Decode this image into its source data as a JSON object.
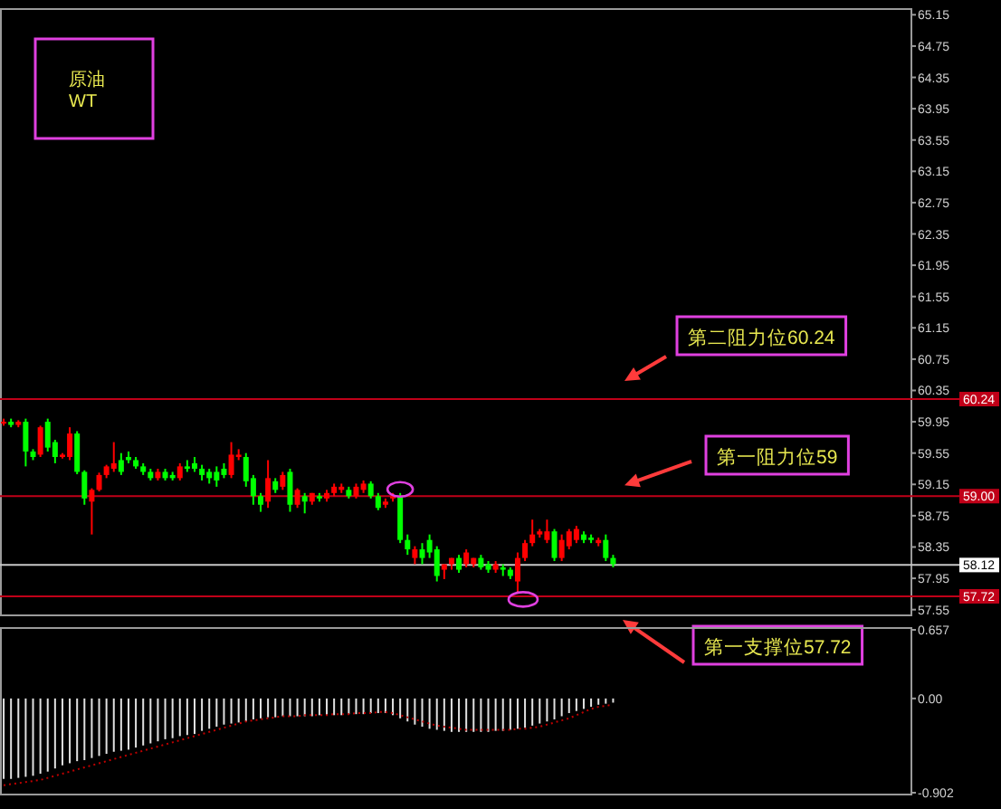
{
  "chart_data": [
    {
      "type": "candlestick",
      "title": "原油",
      "subtitle": "WT",
      "categories": [
        null,
        null,
        null,
        null,
        null,
        null,
        null,
        null,
        null,
        null,
        null,
        null,
        null,
        null,
        null,
        null,
        null,
        null,
        null,
        null,
        null,
        null,
        null,
        null,
        null,
        null,
        null,
        null,
        null,
        null,
        null,
        null,
        null,
        null,
        null,
        null,
        null,
        null,
        null,
        null,
        null,
        null,
        null,
        null,
        null,
        null,
        null,
        null,
        null,
        null,
        null,
        null,
        null,
        null,
        null,
        null,
        null,
        null,
        null,
        null,
        null,
        null,
        null,
        null,
        null,
        null,
        null,
        null,
        null,
        null,
        null,
        null,
        null,
        null,
        null,
        null,
        null,
        null,
        null,
        null,
        null,
        null,
        null,
        null,
        null,
        null,
        null,
        null,
        null,
        null,
        null,
        null,
        null,
        null,
        null,
        null,
        null,
        null,
        null,
        null,
        null,
        null,
        null,
        null,
        null,
        null,
        null,
        null,
        null,
        null,
        null,
        null,
        null,
        null,
        null,
        null,
        null,
        null,
        null,
        null,
        null,
        null,
        null,
        null
      ],
      "ohlc": [
        [
          59.93,
          59.99,
          59.9,
          59.95
        ],
        [
          59.95,
          59.99,
          59.88,
          59.91
        ],
        [
          59.91,
          59.97,
          59.88,
          59.95
        ],
        [
          59.95,
          59.99,
          59.38,
          59.57
        ],
        [
          59.57,
          59.6,
          59.46,
          59.5
        ],
        [
          59.53,
          59.9,
          59.5,
          59.88
        ],
        [
          59.95,
          59.99,
          59.57,
          59.62
        ],
        [
          59.69,
          59.72,
          59.42,
          59.5
        ],
        [
          59.5,
          59.55,
          59.48,
          59.53
        ],
        [
          59.5,
          59.88,
          59.46,
          59.8
        ],
        [
          59.8,
          59.83,
          59.28,
          59.31
        ],
        [
          59.31,
          59.33,
          58.89,
          58.97
        ],
        [
          58.93,
          59.1,
          58.51,
          59.08
        ],
        [
          59.08,
          59.3,
          59.06,
          59.27
        ],
        [
          59.27,
          59.4,
          59.23,
          59.38
        ],
        [
          59.35,
          59.69,
          59.31,
          59.42
        ],
        [
          59.46,
          59.55,
          59.27,
          59.31
        ],
        [
          59.5,
          59.57,
          59.42,
          59.46
        ],
        [
          59.46,
          59.5,
          59.35,
          59.38
        ],
        [
          59.38,
          59.42,
          59.27,
          59.31
        ],
        [
          59.31,
          59.35,
          59.2,
          59.23
        ],
        [
          59.23,
          59.35,
          59.2,
          59.31
        ],
        [
          59.31,
          59.35,
          59.2,
          59.23
        ],
        [
          59.27,
          59.31,
          59.2,
          59.23
        ],
        [
          59.23,
          59.42,
          59.2,
          59.38
        ],
        [
          59.38,
          59.46,
          59.31,
          59.35
        ],
        [
          59.42,
          59.5,
          59.31,
          59.35
        ],
        [
          59.35,
          59.4,
          59.2,
          59.27
        ],
        [
          59.31,
          59.35,
          59.16,
          59.23
        ],
        [
          59.31,
          59.38,
          59.12,
          59.2
        ],
        [
          59.35,
          59.42,
          59.23,
          59.27
        ],
        [
          59.27,
          59.69,
          59.23,
          59.53
        ],
        [
          59.5,
          59.6,
          59.46,
          59.53
        ],
        [
          59.5,
          59.55,
          59.12,
          59.19
        ],
        [
          59.23,
          59.27,
          58.89,
          59.0
        ],
        [
          59.0,
          59.04,
          58.8,
          58.89
        ],
        [
          58.93,
          59.46,
          58.85,
          59.23
        ],
        [
          59.19,
          59.23,
          59.04,
          59.08
        ],
        [
          59.12,
          59.31,
          59.08,
          59.27
        ],
        [
          59.31,
          59.35,
          58.8,
          58.89
        ],
        [
          58.89,
          59.1,
          58.85,
          59.08
        ],
        [
          59.0,
          59.04,
          58.78,
          58.93
        ],
        [
          58.93,
          59.04,
          58.89,
          59.04
        ],
        [
          59.0,
          59.04,
          58.93,
          58.97
        ],
        [
          58.97,
          59.08,
          58.93,
          59.04
        ],
        [
          59.04,
          59.16,
          59.0,
          59.12
        ],
        [
          59.08,
          59.16,
          59.04,
          59.12
        ],
        [
          59.08,
          59.12,
          58.97,
          59.0
        ],
        [
          59.0,
          59.16,
          58.97,
          59.12
        ],
        [
          59.08,
          59.2,
          59.04,
          59.16
        ],
        [
          59.16,
          59.19,
          58.97,
          59.0
        ],
        [
          59.0,
          59.04,
          58.82,
          58.85
        ],
        [
          58.89,
          58.97,
          58.85,
          58.93
        ],
        [
          58.97,
          59.04,
          58.93,
          59.0
        ],
        [
          59.0,
          59.04,
          58.4,
          58.44
        ],
        [
          58.44,
          58.51,
          58.25,
          58.32
        ],
        [
          58.21,
          58.36,
          58.13,
          58.32
        ],
        [
          58.32,
          58.4,
          58.13,
          58.21
        ],
        [
          58.44,
          58.51,
          58.21,
          58.28
        ],
        [
          58.32,
          58.36,
          57.91,
          57.98
        ],
        [
          58.06,
          58.13,
          57.94,
          58.13
        ],
        [
          58.13,
          58.21,
          58.06,
          58.21
        ],
        [
          58.21,
          58.25,
          58.02,
          58.06
        ],
        [
          58.13,
          58.32,
          58.09,
          58.28
        ],
        [
          58.13,
          58.21,
          58.09,
          58.21
        ],
        [
          58.21,
          58.25,
          58.06,
          58.09
        ],
        [
          58.13,
          58.17,
          58.02,
          58.06
        ],
        [
          58.06,
          58.17,
          58.02,
          58.13
        ],
        [
          58.09,
          58.13,
          57.98,
          58.06
        ],
        [
          58.06,
          58.09,
          57.94,
          57.98
        ],
        [
          57.91,
          58.28,
          57.75,
          58.21
        ],
        [
          58.21,
          58.44,
          58.17,
          58.4
        ],
        [
          58.4,
          58.7,
          58.36,
          58.51
        ],
        [
          58.51,
          58.58,
          58.47,
          58.55
        ],
        [
          58.44,
          58.7,
          58.4,
          58.55
        ],
        [
          58.55,
          58.58,
          58.17,
          58.21
        ],
        [
          58.21,
          58.51,
          58.17,
          58.44
        ],
        [
          58.36,
          58.58,
          58.32,
          58.55
        ],
        [
          58.44,
          58.62,
          58.4,
          58.58
        ],
        [
          58.51,
          58.55,
          58.4,
          58.44
        ],
        [
          58.47,
          58.51,
          58.4,
          58.44
        ],
        [
          58.4,
          58.47,
          58.36,
          58.44
        ],
        [
          58.44,
          58.51,
          58.17,
          58.21
        ],
        [
          58.21,
          58.25,
          58.09,
          58.13
        ],
        null,
        null,
        null,
        null,
        null,
        null,
        null,
        null,
        null,
        null,
        null,
        null,
        null,
        null,
        null,
        null,
        null,
        null,
        null,
        null,
        null,
        null,
        null,
        null,
        null,
        null,
        null,
        null,
        null,
        null,
        null,
        null,
        null,
        null,
        null,
        null,
        null,
        null,
        null,
        null
      ],
      "colors": [
        "#ff0000",
        "#00ff00",
        "#ff0000",
        "#00ff00",
        "#00ff00",
        "#ff0000",
        "#00ff00",
        "#00ff00",
        "#ff0000",
        "#ff0000",
        "#00ff00",
        "#00ff00",
        "#ff0000",
        "#ff0000",
        "#ff0000",
        "#ff0000",
        "#00ff00",
        "#00ff00",
        "#00ff00",
        "#00ff00",
        "#00ff00",
        "#ff0000",
        "#00ff00",
        "#00ff00",
        "#ff0000",
        "#00ff00",
        "#00ff00",
        "#00ff00",
        "#00ff00",
        "#00ff00",
        "#00ff00",
        "#ff0000",
        "#ff0000",
        "#00ff00",
        "#00ff00",
        "#00ff00",
        "#ff0000",
        "#00ff00",
        "#ff0000",
        "#00ff00",
        "#ff0000",
        "#00ff00",
        "#ff0000",
        "#00ff00",
        "#ff0000",
        "#ff0000",
        "#ff0000",
        "#00ff00",
        "#ff0000",
        "#ff0000",
        "#00ff00",
        "#00ff00",
        "#ff0000",
        "#ff0000",
        "#00ff00",
        "#00ff00",
        "#ff0000",
        "#00ff00",
        "#00ff00",
        "#00ff00",
        "#ff0000",
        "#ff0000",
        "#00ff00",
        "#ff0000",
        "#ff0000",
        "#00ff00",
        "#00ff00",
        "#ff0000",
        "#00ff00",
        "#00ff00",
        "#ff0000",
        "#ff0000",
        "#ff0000",
        "#ff0000",
        "#ff0000",
        "#00ff00",
        "#ff0000",
        "#ff0000",
        "#ff0000",
        "#00ff00",
        "#00ff00",
        "#ff0000",
        "#00ff00",
        "#00ff00",
        null,
        null,
        null,
        null,
        null,
        null,
        null,
        null,
        null,
        null,
        null,
        null,
        null,
        null,
        null,
        null,
        null,
        null,
        null,
        null,
        null,
        null,
        null,
        null,
        null,
        null,
        null,
        null,
        null,
        null,
        null,
        null,
        null,
        null,
        null,
        null,
        null,
        null,
        null,
        null
      ],
      "ylim": [
        57.5,
        65.2
      ],
      "yticks": [
        65.15,
        64.75,
        64.35,
        63.95,
        63.55,
        63.15,
        62.75,
        62.35,
        61.95,
        61.55,
        61.15,
        60.75,
        60.35,
        59.95,
        59.55,
        59.15,
        58.75,
        58.35,
        57.95,
        57.55
      ],
      "ref_lines": [
        {
          "axis": "y",
          "value": 60.24,
          "label": "60.24",
          "color": "#c00018"
        },
        {
          "axis": "y",
          "value": 59,
          "label": "59.00",
          "color": "#c00018"
        },
        {
          "axis": "y",
          "value": 58.12,
          "label": "58.12",
          "color": "#c8c8c8"
        },
        {
          "axis": "y",
          "value": 57.72,
          "label": "57.72",
          "color": "#c00018"
        }
      ],
      "annotations": [
        {
          "text": "第二阻力位60.24",
          "y": 60.24
        },
        {
          "text": "第一阻力位59",
          "y": 59
        },
        {
          "text": "第一支撑位57.72",
          "y": 57.72
        }
      ],
      "tick_labels": "y"
    },
    {
      "type": "bar",
      "categories": [
        null,
        null,
        null,
        null,
        null,
        null,
        null,
        null,
        null,
        null,
        null,
        null,
        null,
        null,
        null,
        null,
        null,
        null,
        null,
        null,
        null,
        null,
        null,
        null,
        null,
        null,
        null,
        null,
        null,
        null,
        null,
        null,
        null,
        null,
        null,
        null,
        null,
        null,
        null,
        null,
        null,
        null,
        null,
        null,
        null,
        null,
        null,
        null,
        null,
        null,
        null,
        null,
        null,
        null,
        null,
        null,
        null,
        null,
        null,
        null,
        null,
        null,
        null,
        null,
        null,
        null,
        null,
        null,
        null,
        null,
        null,
        null,
        null,
        null,
        null,
        null,
        null,
        null,
        null,
        null,
        null,
        null,
        null,
        null,
        null,
        null,
        null,
        null,
        null,
        null,
        null,
        null,
        null,
        null,
        null,
        null,
        null,
        null,
        null,
        null,
        null,
        null,
        null,
        null,
        null,
        null,
        null,
        null,
        null,
        null,
        null,
        null,
        null,
        null,
        null,
        null,
        null,
        null,
        null,
        null,
        null,
        null,
        null,
        null
      ],
      "series": [
        {
          "type": "bar",
          "color": "#e0e0e0",
          "values": [
            -0.77,
            -0.77,
            -0.76,
            -0.75,
            -0.74,
            -0.72,
            -0.7,
            -0.67,
            -0.64,
            -0.62,
            -0.6,
            -0.59,
            -0.57,
            -0.55,
            -0.53,
            -0.51,
            -0.5,
            -0.49,
            -0.47,
            -0.45,
            -0.43,
            -0.41,
            -0.39,
            -0.38,
            -0.36,
            -0.35,
            -0.34,
            -0.31,
            -0.29,
            -0.27,
            -0.25,
            -0.24,
            -0.23,
            -0.22,
            -0.2,
            -0.19,
            -0.18,
            -0.18,
            -0.17,
            -0.17,
            -0.17,
            -0.17,
            -0.17,
            -0.16,
            -0.16,
            -0.16,
            -0.16,
            -0.15,
            -0.15,
            -0.15,
            -0.14,
            -0.14,
            -0.14,
            -0.16,
            -0.19,
            -0.22,
            -0.25,
            -0.27,
            -0.29,
            -0.3,
            -0.31,
            -0.32,
            -0.32,
            -0.32,
            -0.32,
            -0.32,
            -0.32,
            -0.31,
            -0.31,
            -0.3,
            -0.29,
            -0.28,
            -0.26,
            -0.24,
            -0.22,
            -0.2,
            -0.17,
            -0.14,
            -0.12,
            -0.1,
            -0.08,
            -0.06,
            -0.05,
            -0.04,
            null,
            null,
            null,
            null,
            null,
            null,
            null,
            null,
            null,
            null,
            null,
            null,
            null,
            null,
            null,
            null,
            null,
            null,
            null,
            null,
            null,
            null,
            null,
            null,
            null,
            null,
            null,
            null,
            null,
            null,
            null,
            null,
            null,
            null,
            null,
            null,
            null,
            null,
            null,
            null
          ]
        },
        {
          "type": "line",
          "color": "#c00000",
          "line_style": "dotted",
          "values": [
            -0.83,
            -0.82,
            -0.81,
            -0.8,
            -0.79,
            -0.78,
            -0.76,
            -0.74,
            -0.72,
            -0.7,
            -0.68,
            -0.66,
            -0.64,
            -0.62,
            -0.6,
            -0.58,
            -0.56,
            -0.54,
            -0.52,
            -0.5,
            -0.48,
            -0.46,
            -0.44,
            -0.42,
            -0.4,
            -0.38,
            -0.36,
            -0.34,
            -0.32,
            -0.3,
            -0.28,
            -0.26,
            -0.24,
            -0.22,
            -0.21,
            -0.2,
            -0.19,
            -0.18,
            -0.17,
            -0.17,
            -0.17,
            -0.16,
            -0.16,
            -0.16,
            -0.16,
            -0.15,
            -0.15,
            -0.15,
            -0.14,
            -0.14,
            -0.14,
            -0.13,
            -0.13,
            -0.14,
            -0.16,
            -0.18,
            -0.2,
            -0.22,
            -0.24,
            -0.26,
            -0.27,
            -0.28,
            -0.29,
            -0.3,
            -0.3,
            -0.3,
            -0.3,
            -0.3,
            -0.3,
            -0.3,
            -0.29,
            -0.29,
            -0.28,
            -0.27,
            -0.25,
            -0.23,
            -0.21,
            -0.19,
            -0.16,
            -0.13,
            -0.1,
            -0.08,
            -0.07,
            -0.06,
            null,
            null,
            null,
            null,
            null,
            null,
            null,
            null,
            null,
            null,
            null,
            null,
            null,
            null,
            null,
            null,
            null,
            null,
            null,
            null,
            null,
            null,
            null,
            null,
            null,
            null,
            null,
            null,
            null,
            null,
            null,
            null,
            null,
            null,
            null,
            null,
            null,
            null,
            null,
            null
          ]
        }
      ],
      "ylim": [
        -0.902,
        0.657
      ],
      "yticks": [
        0.657,
        {
          "value": 0,
          "label": "0.00"
        },
        -0.902
      ],
      "tick_labels": "y"
    }
  ]
}
